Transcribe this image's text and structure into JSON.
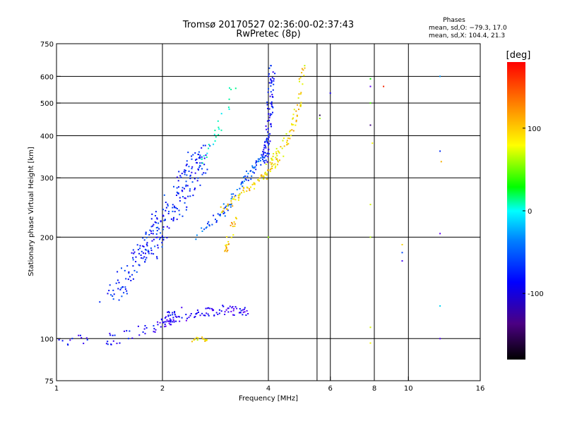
{
  "chart_data": {
    "type": "scatter",
    "title": "Tromsø 20170527 02:36:00-02:37:43",
    "subtitle": "RwPretec (8p)",
    "xlabel": "Frequency [MHz]",
    "ylabel": "Stationary phase Virtual Height [km]",
    "x_scale": "log",
    "y_scale": "log",
    "xlim": [
      1,
      16
    ],
    "ylim": [
      75,
      750
    ],
    "x_ticks": [
      1,
      2,
      4,
      6,
      8,
      10,
      16
    ],
    "x_tick_labels": [
      "1",
      "2",
      "4",
      "6",
      "8",
      "10",
      "16"
    ],
    "y_ticks": [
      75,
      100,
      200,
      300,
      400,
      500,
      600,
      750
    ],
    "y_tick_labels": [
      "75",
      "100",
      "200",
      "300",
      "400",
      "500",
      "600",
      "750"
    ],
    "x_gridlines": [
      2,
      4,
      5.5,
      6,
      8,
      10
    ],
    "y_gridlines": [
      100,
      200,
      300,
      400,
      500,
      600
    ],
    "grid": true,
    "stats": {
      "header": "Phases",
      "line_o": "mean, sd,O: −79.3, 17.0",
      "line_x": "mean, sd,X: 104.4, 21.3"
    },
    "colorbar": {
      "label": "[deg]",
      "min": -180,
      "max": 180,
      "ticks": [
        100,
        0,
        -100
      ],
      "tick_labels": [
        "100",
        "0",
        "-100"
      ]
    },
    "traces": [
      {
        "kind": "band",
        "x": [
          1.0,
          1.5,
          2.0,
          2.2
        ],
        "y": [
          98,
          100,
          110,
          120
        ],
        "spread": 0.08,
        "phase": -105,
        "n": 70
      },
      {
        "kind": "band",
        "x": [
          1.4,
          1.8,
          2.0,
          2.3,
          2.6
        ],
        "y": [
          130,
          180,
          220,
          280,
          360
        ],
        "spread": 0.14,
        "phase": -95,
        "n": 260
      },
      {
        "kind": "band",
        "x": [
          2.0,
          2.5,
          3.0,
          3.5
        ],
        "y": [
          110,
          118,
          122,
          120
        ],
        "spread": 0.06,
        "phase": -115,
        "n": 90
      },
      {
        "kind": "band",
        "x": [
          2.5,
          3.0,
          3.4,
          3.7,
          3.9
        ],
        "y": [
          200,
          240,
          290,
          330,
          350
        ],
        "spread": 0.05,
        "phase": -80,
        "n": 90
      },
      {
        "kind": "band",
        "x": [
          3.9,
          4.0,
          4.05,
          4.1
        ],
        "y": [
          330,
          400,
          520,
          640
        ],
        "spread": 0.04,
        "phase": -100,
        "n": 90
      },
      {
        "kind": "band",
        "x": [
          2.9,
          3.2,
          3.6,
          4.0,
          4.4
        ],
        "y": [
          235,
          260,
          285,
          310,
          350
        ],
        "spread": 0.04,
        "phase": 120,
        "n": 80
      },
      {
        "kind": "band",
        "x": [
          4.0,
          4.4,
          4.7,
          4.9,
          5.0
        ],
        "y": [
          330,
          370,
          420,
          500,
          640
        ],
        "spread": 0.04,
        "phase": 115,
        "n": 70
      },
      {
        "kind": "band",
        "x": [
          3.0,
          3.1,
          3.2
        ],
        "y": [
          180,
          200,
          230
        ],
        "spread": 0.04,
        "phase": 125,
        "n": 25
      },
      {
        "kind": "band",
        "x": [
          2.4,
          2.5,
          2.6,
          2.7
        ],
        "y": [
          98,
          100,
          100,
          98
        ],
        "spread": 0.02,
        "phase": 110,
        "n": 15
      },
      {
        "kind": "band",
        "x": [
          2.6,
          2.9,
          3.2
        ],
        "y": [
          330,
          420,
          560
        ],
        "spread": 0.05,
        "phase": -20,
        "n": 25
      }
    ],
    "points": [
      {
        "x": 7.8,
        "y": 590,
        "phase": 40
      },
      {
        "x": 7.8,
        "y": 560,
        "phase": -130
      },
      {
        "x": 7.8,
        "y": 500,
        "phase": 60
      },
      {
        "x": 7.8,
        "y": 430,
        "phase": -150
      },
      {
        "x": 7.9,
        "y": 380,
        "phase": 110
      },
      {
        "x": 7.8,
        "y": 250,
        "phase": 100
      },
      {
        "x": 7.8,
        "y": 200,
        "phase": 90
      },
      {
        "x": 7.8,
        "y": 108,
        "phase": 100
      },
      {
        "x": 7.8,
        "y": 97,
        "phase": 110
      },
      {
        "x": 8.5,
        "y": 560,
        "phase": 170
      },
      {
        "x": 9.6,
        "y": 190,
        "phase": 120
      },
      {
        "x": 9.6,
        "y": 180,
        "phase": -80
      },
      {
        "x": 9.6,
        "y": 170,
        "phase": -120
      },
      {
        "x": 12.3,
        "y": 600,
        "phase": -60
      },
      {
        "x": 12.3,
        "y": 360,
        "phase": -90
      },
      {
        "x": 12.4,
        "y": 335,
        "phase": 130
      },
      {
        "x": 12.3,
        "y": 205,
        "phase": -130
      },
      {
        "x": 12.3,
        "y": 125,
        "phase": -40
      },
      {
        "x": 12.3,
        "y": 100,
        "phase": -125
      },
      {
        "x": 5.6,
        "y": 460,
        "phase": -170
      },
      {
        "x": 5.6,
        "y": 450,
        "phase": 80
      },
      {
        "x": 6.0,
        "y": 535,
        "phase": -110
      },
      {
        "x": 4.0,
        "y": 200,
        "phase": 80
      }
    ]
  }
}
